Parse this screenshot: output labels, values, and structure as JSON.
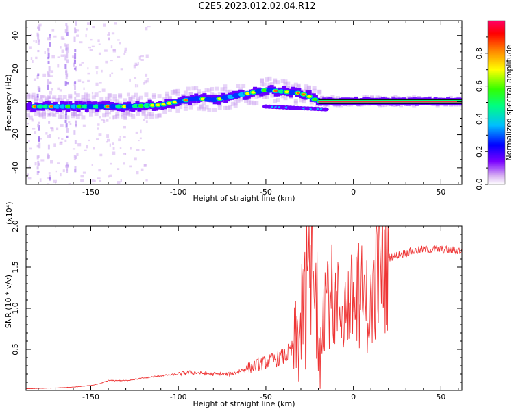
{
  "title": "C2E5.2023.012.02.04.R12",
  "chart_data": [
    {
      "type": "heatmap",
      "xlabel": "Height of straight line (km)",
      "ylabel": "Frequency (Hz)",
      "xlim": [
        -187,
        62
      ],
      "ylim": [
        -50,
        49
      ],
      "xticks": [
        "-150",
        "-100",
        "-50",
        "0",
        "50"
      ],
      "xtick_values": [
        -150,
        -100,
        -50,
        0,
        50
      ],
      "yticks": [
        "40",
        "20",
        "0",
        "-20",
        "-40"
      ],
      "ytick_values": [
        40,
        20,
        0,
        -20,
        -40
      ],
      "colorbar": {
        "label": "Normalized spectral amplitude",
        "range": [
          0,
          1
        ],
        "ticks": [
          "0.0",
          "0.2",
          "0.4",
          "0.6",
          "0.8"
        ],
        "tick_values": [
          0.0,
          0.2,
          0.4,
          0.6,
          0.8
        ],
        "colormap": [
          "#ffffff",
          "#d9b3f2",
          "#7a00ff",
          "#0000ff",
          "#00bfff",
          "#00ff80",
          "#33ff00",
          "#ffff00",
          "#ff8000",
          "#ff0000",
          "#ff0066"
        ]
      },
      "ridge": {
        "x": [
          -187,
          -170,
          -150,
          -130,
          -110,
          -100,
          -90,
          -80,
          -70,
          -60,
          -50,
          -40,
          -30,
          -25,
          -20,
          -10,
          0,
          10,
          20,
          30,
          62
        ],
        "y": [
          -3,
          -3,
          -3,
          -3,
          -2,
          0,
          2,
          1,
          3,
          5,
          7,
          6,
          5,
          3,
          0,
          0,
          0,
          0,
          0,
          0,
          0
        ]
      },
      "grid": false
    },
    {
      "type": "line",
      "xlabel": "Height of straight line (km)",
      "ylabel": "SNR (10 * v/v)",
      "y_multiplier": "(x10⁴)",
      "xlim": [
        -187,
        62
      ],
      "ylim": [
        0,
        2.0
      ],
      "xticks": [
        "-150",
        "-100",
        "-50",
        "0",
        "50"
      ],
      "xtick_values": [
        -150,
        -100,
        -50,
        0,
        50
      ],
      "yticks": [
        "2.0",
        "1.5",
        "1.0",
        "0.5"
      ],
      "ytick_values": [
        2.0,
        1.5,
        1.0,
        0.5
      ],
      "series": [
        {
          "color": "#ee3333",
          "x": [
            -187,
            -170,
            -160,
            -150,
            -145,
            -140,
            -130,
            -120,
            -110,
            -100,
            -95,
            -90,
            -80,
            -70,
            -60,
            -55,
            -50,
            -45,
            -40,
            -35,
            -30,
            -28,
            -26,
            -24,
            -22,
            -20,
            -18,
            -15,
            -12,
            -10,
            -5,
            0,
            3,
            5,
            8,
            10,
            12,
            15,
            20,
            25,
            30,
            35,
            40,
            45,
            50,
            55,
            62
          ],
          "y": [
            0.02,
            0.03,
            0.04,
            0.06,
            0.08,
            0.12,
            0.12,
            0.15,
            0.18,
            0.2,
            0.22,
            0.22,
            0.2,
            0.2,
            0.28,
            0.32,
            0.35,
            0.38,
            0.42,
            0.5,
            0.8,
            1.0,
            1.3,
            1.5,
            1.2,
            0.8,
            1.1,
            1.3,
            1.2,
            1.1,
            1.05,
            1.15,
            1.25,
            1.2,
            1.1,
            1.0,
            1.45,
            1.55,
            1.62,
            1.65,
            1.68,
            1.7,
            1.72,
            1.72,
            1.72,
            1.71,
            1.71
          ]
        }
      ],
      "grid": false
    }
  ]
}
